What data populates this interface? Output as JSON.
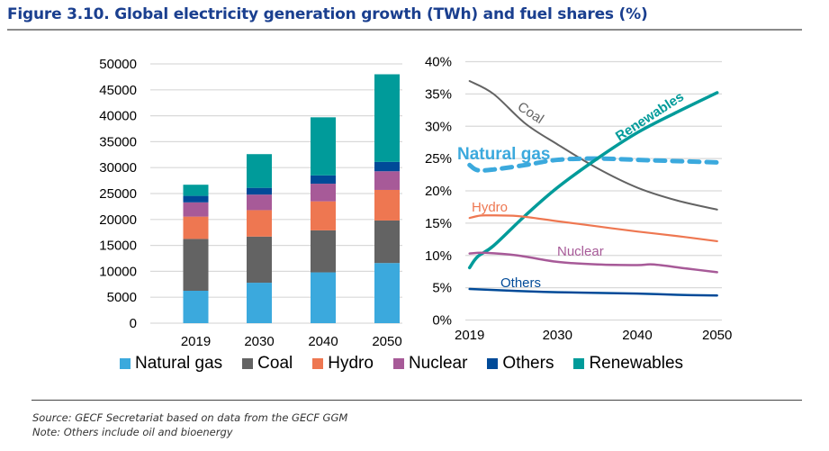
{
  "figure": {
    "title": "Figure 3.10. Global electricity generation growth (TWh) and fuel shares (%)",
    "source": "Source: GECF Secretariat based on data from the GECF GGM",
    "note": "Note: Others include oil and bioenergy"
  },
  "colors": {
    "Natural gas": "#3BA9DD",
    "Coal": "#636363",
    "Hydro": "#EE7751",
    "Nuclear": "#A75A98",
    "Others": "#004A98",
    "Renewables": "#009B9A"
  },
  "legend": [
    {
      "label": "Natural gas",
      "key": "Natural gas"
    },
    {
      "label": "Coal",
      "key": "Coal"
    },
    {
      "label": "Hydro",
      "key": "Hydro"
    },
    {
      "label": "Nuclear",
      "key": "Nuclear"
    },
    {
      "label": "Others",
      "key": "Others"
    },
    {
      "label": "Renewables",
      "key": "Renewables"
    }
  ],
  "chart_data": [
    {
      "type": "bar",
      "stacked": true,
      "title": "Global electricity generation (TWh)",
      "xlabel": "",
      "ylabel": "TWh",
      "categories": [
        "2019",
        "2030",
        "2040",
        "2050"
      ],
      "ylim": [
        0,
        50000
      ],
      "yticks": [
        0,
        5000,
        10000,
        15000,
        20000,
        25000,
        30000,
        35000,
        40000,
        45000,
        50000
      ],
      "ytick_labels": [
        "0",
        "5000",
        "10000",
        "15000",
        "20000",
        "25000",
        "30000",
        "35000",
        "40000",
        "45000",
        "50000"
      ],
      "grid": true,
      "series": [
        {
          "name": "Natural gas",
          "values": [
            6250,
            7800,
            9800,
            11600
          ]
        },
        {
          "name": "Coal",
          "values": [
            10000,
            8900,
            8100,
            8200
          ]
        },
        {
          "name": "Hydro",
          "values": [
            4300,
            5100,
            5600,
            5900
          ]
        },
        {
          "name": "Nuclear",
          "values": [
            2750,
            3000,
            3400,
            3600
          ]
        },
        {
          "name": "Others",
          "values": [
            1250,
            1300,
            1600,
            1800
          ]
        },
        {
          "name": "Renewables",
          "values": [
            2150,
            6500,
            11200,
            16900
          ]
        }
      ],
      "legend_position": "bottom"
    },
    {
      "type": "line",
      "title": "Fuel shares (%)",
      "xlabel": "",
      "ylabel": "%",
      "xlim": [
        2019,
        2050
      ],
      "xticks": [
        2019,
        2030,
        2040,
        2050
      ],
      "xtick_labels": [
        "2019",
        "2030",
        "2040",
        "2050"
      ],
      "ylim": [
        0,
        40
      ],
      "yticks": [
        0,
        5,
        10,
        15,
        20,
        25,
        30,
        35,
        40
      ],
      "ytick_labels": [
        "0%",
        "5%",
        "10%",
        "15%",
        "20%",
        "25%",
        "30%",
        "35%",
        "40%"
      ],
      "grid": true,
      "series": [
        {
          "name": "Coal",
          "label": "Coal",
          "style": "solid",
          "x": [
            2019,
            2022,
            2026,
            2030,
            2035,
            2040,
            2045,
            2050
          ],
          "y": [
            37.0,
            35.0,
            30.4,
            27.2,
            23.5,
            20.5,
            18.5,
            17.1
          ]
        },
        {
          "name": "Natural gas",
          "label": "Natural gas",
          "style": "dashed",
          "x": [
            2019,
            2020,
            2022,
            2026,
            2030,
            2035,
            2040,
            2045,
            2050
          ],
          "y": [
            24.0,
            23.2,
            23.3,
            24.0,
            24.8,
            25.0,
            24.8,
            24.6,
            24.4
          ]
        },
        {
          "name": "Renewables",
          "label": "Renewables",
          "style": "solid",
          "x": [
            2019,
            2020,
            2022,
            2026,
            2030,
            2035,
            2040,
            2045,
            2050
          ],
          "y": [
            8.1,
            9.8,
            11.5,
            16.2,
            20.5,
            25.0,
            29.0,
            32.2,
            35.2
          ]
        },
        {
          "name": "Hydro",
          "label": "Hydro",
          "style": "solid",
          "x": [
            2019,
            2020,
            2021,
            2025,
            2030,
            2035,
            2040,
            2045,
            2050
          ],
          "y": [
            15.8,
            16.1,
            16.2,
            16.1,
            15.3,
            14.5,
            13.7,
            13.0,
            12.2
          ]
        },
        {
          "name": "Nuclear",
          "label": "Nuclear",
          "style": "solid",
          "x": [
            2019,
            2021,
            2025,
            2030,
            2035,
            2040,
            2042,
            2046,
            2050
          ],
          "y": [
            10.3,
            10.4,
            10.0,
            9.0,
            8.6,
            8.5,
            8.6,
            8.0,
            7.4
          ]
        },
        {
          "name": "Others",
          "label": "Others",
          "style": "solid",
          "x": [
            2019,
            2021,
            2025,
            2030,
            2035,
            2040,
            2045,
            2050
          ],
          "y": [
            4.8,
            4.7,
            4.5,
            4.3,
            4.2,
            4.1,
            3.9,
            3.8
          ]
        }
      ]
    }
  ]
}
